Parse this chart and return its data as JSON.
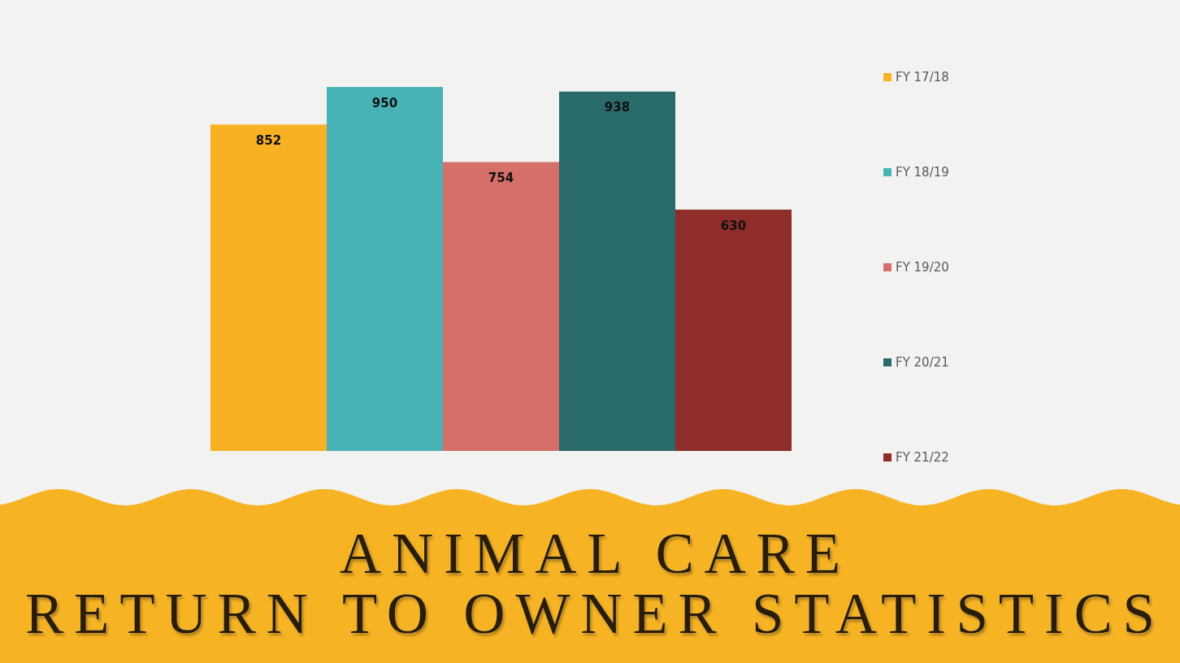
{
  "chart_data": {
    "type": "bar",
    "title": "ANIMAL CARE\nRETURN TO OWNER STATISTICS",
    "categories": [
      null
    ],
    "series": [
      {
        "name": "FY 17/18",
        "color": "#f9b124",
        "values": [
          852
        ]
      },
      {
        "name": "FY 18/19",
        "color": "#48b3b6",
        "values": [
          950
        ]
      },
      {
        "name": "FY 19/20",
        "color": "#d46f69",
        "values": [
          754
        ]
      },
      {
        "name": "FY 20/21",
        "color": "#296a6b",
        "values": [
          938
        ]
      },
      {
        "name": "FY 21/22",
        "color": "#8e2d2a",
        "values": [
          630
        ]
      }
    ],
    "data_labels": true,
    "legend": "right"
  }
}
